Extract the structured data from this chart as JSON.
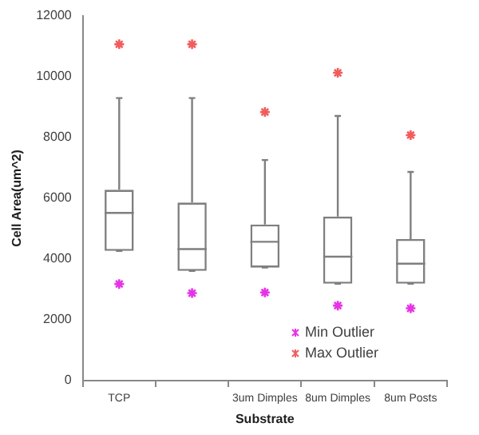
{
  "chart_data": {
    "type": "box",
    "xlabel": "Substrate",
    "ylabel": "Cell Area(um^2)",
    "categories": [
      "TCP",
      null,
      "3um Dimples",
      "8um Dimples",
      "8um Posts"
    ],
    "boxes": [
      {
        "low": 4270,
        "q1": 4270,
        "median": 5520,
        "q3": 6280,
        "high": 9300
      },
      {
        "low": 3610,
        "q1": 3610,
        "median": 4330,
        "q3": 5860,
        "high": 9300
      },
      {
        "low": 3720,
        "q1": 3720,
        "median": 4570,
        "q3": 5140,
        "high": 7260
      },
      {
        "low": 3190,
        "q1": 3190,
        "median": 4080,
        "q3": 5400,
        "high": 8710
      },
      {
        "low": 3190,
        "q1": 3190,
        "median": 3850,
        "q3": 4660,
        "high": 6870
      }
    ],
    "series": [
      {
        "type": "scatter",
        "name": "Min Outlier",
        "color": "#e633e6",
        "values": [
          3180,
          2880,
          2900,
          2470,
          2380
        ]
      },
      {
        "type": "scatter",
        "name": "Max Outlier",
        "color": "#f25c5c",
        "values": [
          11070,
          11070,
          8840,
          10130,
          8080
        ]
      }
    ],
    "ylim": [
      0,
      12000
    ],
    "yticks": [
      0,
      2000,
      4000,
      6000,
      8000,
      10000,
      12000
    ],
    "marker": "cross",
    "legend": "bottom right",
    "grid": false
  }
}
